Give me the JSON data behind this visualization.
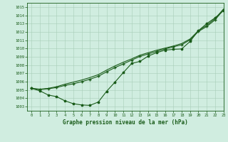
{
  "title": "Graphe pression niveau de la mer (hPa)",
  "bg_color": "#d0ede0",
  "grid_color": "#a8cdb8",
  "line_color": "#1a5c1a",
  "xlim": [
    -0.5,
    23
  ],
  "ylim": [
    1002.5,
    1015.5
  ],
  "x_ticks": [
    0,
    1,
    2,
    3,
    4,
    5,
    6,
    7,
    8,
    9,
    10,
    11,
    12,
    13,
    14,
    15,
    16,
    17,
    18,
    19,
    20,
    21,
    22,
    23
  ],
  "y_ticks": [
    1003,
    1004,
    1005,
    1006,
    1007,
    1008,
    1009,
    1010,
    1011,
    1012,
    1013,
    1014,
    1015
  ],
  "series1_x": [
    0,
    1,
    2,
    3,
    4,
    5,
    6,
    7,
    8,
    9,
    10,
    11,
    12,
    13,
    14,
    15,
    16,
    17,
    18,
    19,
    20,
    21,
    22,
    23
  ],
  "series1_y": [
    1005.2,
    1004.9,
    1004.4,
    1004.2,
    1003.7,
    1003.35,
    1003.2,
    1003.15,
    1003.55,
    1004.85,
    1005.95,
    1007.1,
    1008.2,
    1008.45,
    1009.1,
    1009.5,
    1009.8,
    1009.9,
    1009.95,
    1010.85,
    1012.15,
    1013.0,
    1013.7,
    1014.55
  ],
  "series2_x": [
    0,
    1,
    2,
    3,
    4,
    5,
    6,
    7,
    8,
    9,
    10,
    11,
    12,
    13,
    14,
    15,
    16,
    17,
    18,
    19,
    20,
    21,
    22,
    23
  ],
  "series2_y": [
    1005.2,
    1005.05,
    1005.15,
    1005.3,
    1005.55,
    1005.75,
    1006.0,
    1006.3,
    1006.65,
    1007.2,
    1007.7,
    1008.15,
    1008.6,
    1009.05,
    1009.35,
    1009.65,
    1009.95,
    1010.2,
    1010.45,
    1011.05,
    1012.05,
    1012.65,
    1013.45,
    1014.65
  ],
  "series3_x": [
    0,
    1,
    2,
    3,
    4,
    5,
    6,
    7,
    8,
    9,
    10,
    11,
    12,
    13,
    14,
    15,
    16,
    17,
    18,
    19,
    20,
    21,
    22,
    23
  ],
  "series3_y": [
    1005.2,
    1005.1,
    1005.2,
    1005.4,
    1005.7,
    1005.95,
    1006.2,
    1006.5,
    1006.85,
    1007.4,
    1007.9,
    1008.35,
    1008.75,
    1009.2,
    1009.5,
    1009.8,
    1010.05,
    1010.3,
    1010.6,
    1011.15,
    1012.15,
    1012.8,
    1013.6,
    1014.75
  ]
}
